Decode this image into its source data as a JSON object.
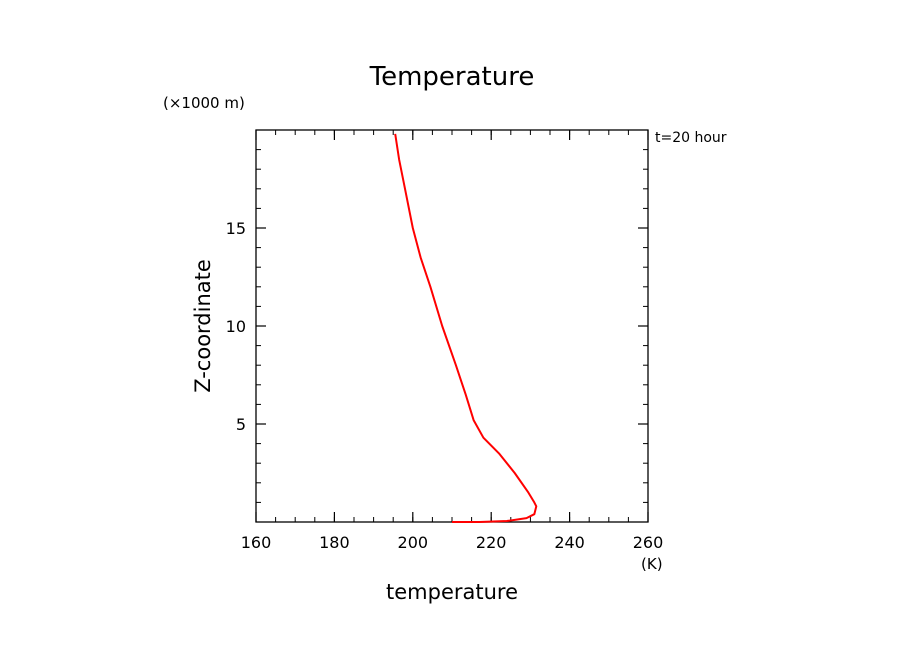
{
  "chart_data": {
    "type": "line",
    "title": "Temperature",
    "xlabel": "temperature",
    "xunit": "(K)",
    "ylabel": "Z-coordinate",
    "yunit": "(×1000 m)",
    "annotation": "t=20 hour",
    "xlim": [
      160,
      260
    ],
    "ylim": [
      0,
      20
    ],
    "x_ticks": [
      160,
      180,
      200,
      220,
      240,
      260
    ],
    "y_ticks": [
      5,
      10,
      15
    ],
    "grid": false,
    "line_color": "#ff0000",
    "series": [
      {
        "x": [
          195.5,
          196.5,
          198.0,
          200.0,
          202.0,
          204.5,
          207.5,
          211.0,
          213.5,
          215.5,
          218.0,
          222.0,
          226.0,
          229.5,
          231.0,
          231.5,
          231.0,
          229.0,
          224.0,
          217.0,
          210.0
        ],
        "y": [
          19.8,
          18.5,
          17.0,
          15.0,
          13.5,
          12.0,
          10.0,
          8.0,
          6.5,
          5.2,
          4.3,
          3.5,
          2.5,
          1.5,
          1.0,
          0.8,
          0.4,
          0.2,
          0.05,
          0.0,
          0.0
        ]
      }
    ]
  }
}
